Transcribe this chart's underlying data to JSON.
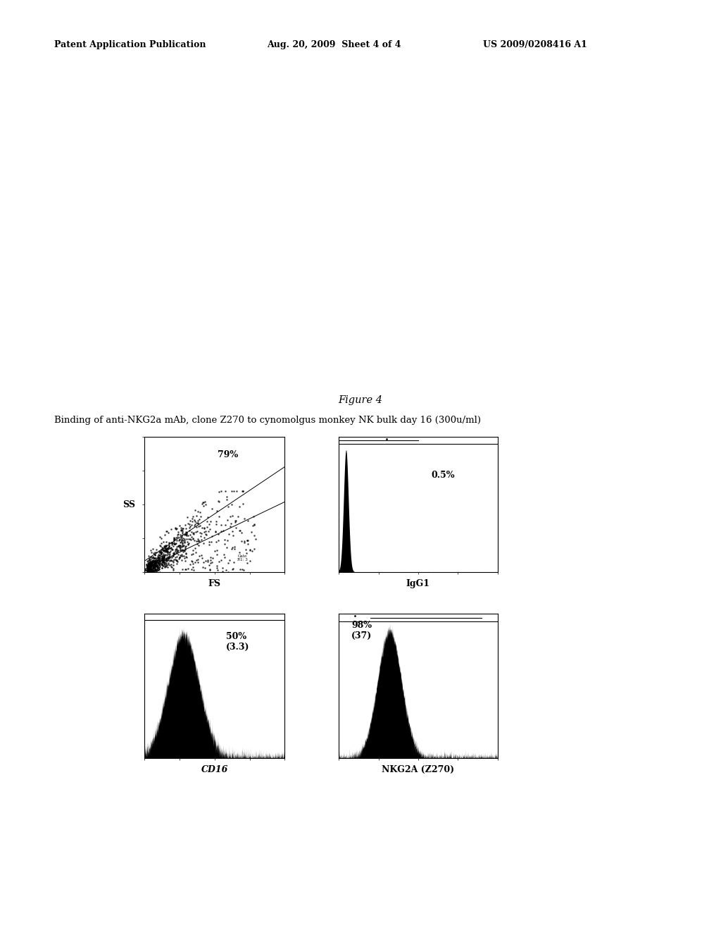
{
  "header_left": "Patent Application Publication",
  "header_mid": "Aug. 20, 2009  Sheet 4 of 4",
  "header_right": "US 2009/0208416 A1",
  "figure_label": "Figure 4",
  "subtitle": "Binding of anti-NKG2a mAb, clone Z270 to cynomolgus monkey NK bulk day 16 (300u/ml)",
  "ann1": "79%",
  "ann2": "0.5%",
  "ann3": "50%\n(3.3)",
  "ann4": "98%\n(37)",
  "xlabel1": "FS",
  "xlabel2": "IgG1",
  "xlabel3": "CD16",
  "xlabel4": "NKG2A (Z270)",
  "ylabel1": "SS",
  "background_color": "#ffffff",
  "figw": 10.24,
  "figh": 13.2,
  "dpi": 100
}
